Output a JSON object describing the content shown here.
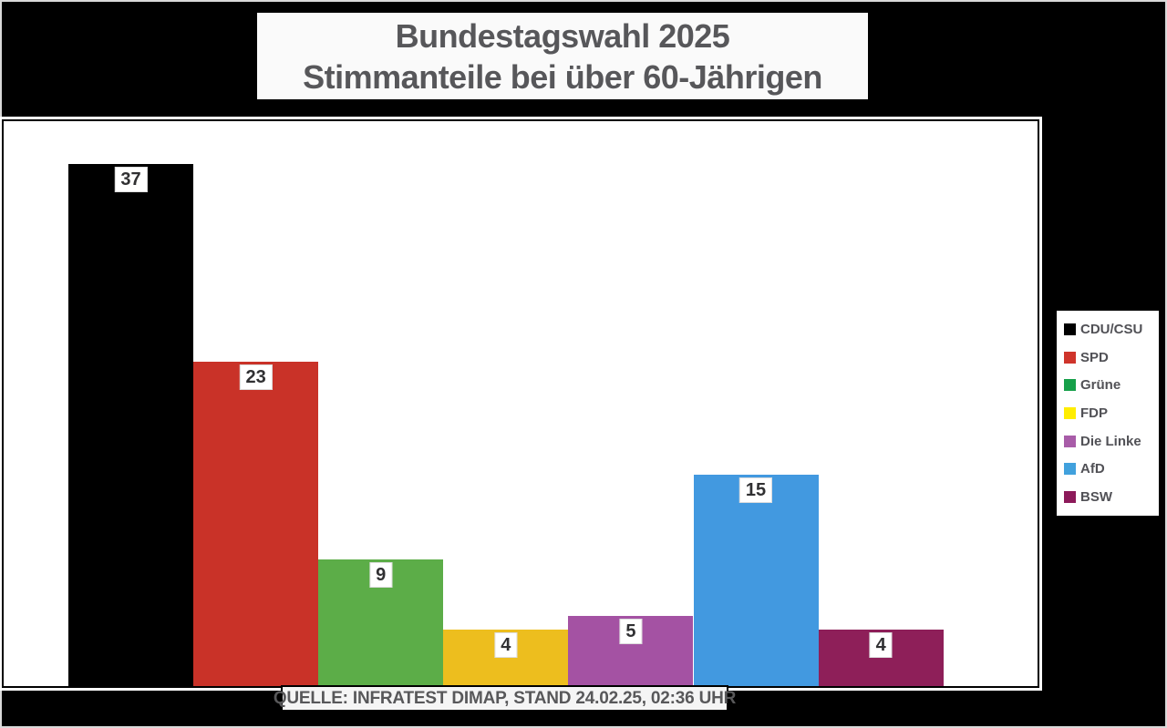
{
  "title": {
    "line1": "Bundestagswahl 2025",
    "line2": "Stimmanteile bei über 60-Jährigen"
  },
  "source": {
    "text": "QUELLE: INFRATEST DIMAP, STAND 24.02.25, 02:36 UHR"
  },
  "colors": {
    "background": "#000000",
    "plot_background": "#ffffff",
    "title_text": "#57575a",
    "value_label_text": "#303032"
  },
  "chart_data": {
    "type": "bar",
    "title": "Bundestagswahl 2025 — Stimmanteile bei über 60-Jährigen",
    "categories": [
      "CDU/CSU",
      "SPD",
      "Grüne",
      "FDP",
      "Die Linke",
      "AfD",
      "BSW"
    ],
    "values": [
      37,
      23,
      9,
      4,
      5,
      15,
      4
    ],
    "bar_colors": [
      "#000000",
      "#c93228",
      "#5cad48",
      "#edbe1e",
      "#a452a3",
      "#4299e0",
      "#8e1f59"
    ],
    "xlabel": "",
    "ylabel": "",
    "ylim": [
      0,
      40
    ],
    "grid": false,
    "value_labels_shown": true,
    "legend_position": "right",
    "legend": [
      {
        "label": "CDU/CSU",
        "color": "#000000"
      },
      {
        "label": "SPD",
        "color": "#cf342b"
      },
      {
        "label": "Grüne",
        "color": "#16a04a"
      },
      {
        "label": "FDP",
        "color": "#ffed00"
      },
      {
        "label": "Die Linke",
        "color": "#a85ca8"
      },
      {
        "label": "AfD",
        "color": "#41a1dd"
      },
      {
        "label": "BSW",
        "color": "#8c1a5a"
      }
    ]
  }
}
